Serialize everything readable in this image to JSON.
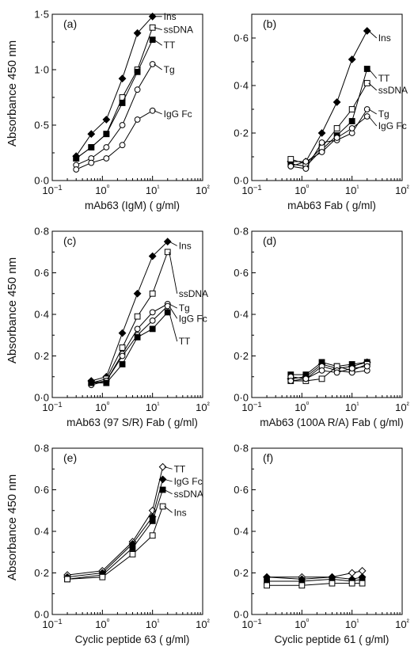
{
  "figure": {
    "ylabel_top": "Absorbance 450 nm",
    "ylabel_middle": "Absorbance 450 nm",
    "ylabel_bottom": "Absorbance 450 nm"
  },
  "chart_data": [
    {
      "type": "line",
      "panel": "(a)",
      "xlabel": "mAb63 (IgM) ( g/ml)",
      "ylabel": "Absorbance 450 nm",
      "xscale": "log",
      "xlim": [
        0.1,
        100
      ],
      "ylim": [
        0,
        1.5
      ],
      "xticks": [
        0.1,
        1,
        10,
        100
      ],
      "xtick_labels": [
        "10−1",
        "10⁰",
        "10¹",
        "10²"
      ],
      "yticks": [
        0,
        0.5,
        1.0,
        1.5
      ],
      "ytick_labels": [
        "0·0",
        "0·5",
        "1·0",
        "1·5"
      ],
      "series": [
        {
          "name": "Ins",
          "marker": "filled-diamond",
          "x": [
            0.3,
            0.6,
            1.2,
            2.5,
            5,
            10
          ],
          "y": [
            0.22,
            0.42,
            0.55,
            0.92,
            1.33,
            1.48
          ]
        },
        {
          "name": "ssDNA",
          "marker": "open-square",
          "x": [
            0.3,
            0.6,
            1.2,
            2.5,
            5,
            10
          ],
          "y": [
            0.2,
            0.3,
            0.42,
            0.75,
            1.0,
            1.38
          ]
        },
        {
          "name": "TT",
          "marker": "filled-square",
          "x": [
            0.3,
            0.6,
            1.2,
            2.5,
            5,
            10
          ],
          "y": [
            0.2,
            0.3,
            0.42,
            0.7,
            0.98,
            1.27
          ]
        },
        {
          "name": "Tg",
          "marker": "open-circle",
          "x": [
            0.3,
            0.6,
            1.2,
            2.5,
            5,
            10
          ],
          "y": [
            0.14,
            0.2,
            0.3,
            0.5,
            0.82,
            1.05
          ]
        },
        {
          "name": "IgG Fc",
          "marker": "open-circle",
          "x": [
            0.3,
            0.6,
            1.2,
            2.5,
            5,
            10
          ],
          "y": [
            0.1,
            0.16,
            0.2,
            0.32,
            0.55,
            0.63
          ]
        }
      ],
      "label_targets": [
        {
          "series": "Ins",
          "y": 1.48
        },
        {
          "series": "ssDNA",
          "y": 1.36
        },
        {
          "series": "TT",
          "y": 1.22
        },
        {
          "series": "Tg",
          "y": 1.0
        },
        {
          "series": "IgG Fc",
          "y": 0.6
        }
      ]
    },
    {
      "type": "line",
      "panel": "(b)",
      "xlabel": "mAb63 Fab ( g/ml)",
      "ylabel": "",
      "xscale": "log",
      "xlim": [
        0.1,
        100
      ],
      "ylim": [
        0,
        0.7
      ],
      "xticks": [
        0.1,
        1,
        10,
        100
      ],
      "xtick_labels": [
        "10−1",
        "10⁰",
        "10¹",
        "10²"
      ],
      "yticks": [
        0,
        0.2,
        0.4,
        0.6
      ],
      "ytick_labels": [
        "0·0",
        "0·2",
        "0·4",
        "0·6"
      ],
      "series": [
        {
          "name": "Ins",
          "marker": "filled-diamond",
          "x": [
            0.6,
            1.2,
            2.5,
            5,
            10,
            20
          ],
          "y": [
            0.08,
            0.08,
            0.2,
            0.33,
            0.51,
            0.63
          ]
        },
        {
          "name": "TT",
          "marker": "filled-square",
          "x": [
            0.6,
            1.2,
            2.5,
            5,
            10,
            20
          ],
          "y": [
            0.07,
            0.06,
            0.13,
            0.19,
            0.25,
            0.47
          ]
        },
        {
          "name": "ssDNA",
          "marker": "open-square",
          "x": [
            0.6,
            1.2,
            2.5,
            5,
            10,
            20
          ],
          "y": [
            0.09,
            0.07,
            0.14,
            0.22,
            0.3,
            0.41
          ]
        },
        {
          "name": "Tg",
          "marker": "open-circle",
          "x": [
            0.6,
            1.2,
            2.5,
            5,
            10,
            20
          ],
          "y": [
            0.06,
            0.05,
            0.16,
            0.17,
            0.2,
            0.3
          ]
        },
        {
          "name": "IgG Fc",
          "marker": "open-circle",
          "x": [
            0.6,
            1.2,
            2.5,
            5,
            10,
            20
          ],
          "y": [
            0.06,
            0.08,
            0.12,
            0.18,
            0.22,
            0.27
          ]
        }
      ],
      "label_targets": [
        {
          "series": "Ins",
          "y": 0.6
        },
        {
          "series": "TT",
          "y": 0.43
        },
        {
          "series": "ssDNA",
          "y": 0.38
        },
        {
          "series": "Tg",
          "y": 0.28
        },
        {
          "series": "IgG Fc",
          "y": 0.23
        }
      ]
    },
    {
      "type": "line",
      "panel": "(c)",
      "xlabel": "mAb63 (97 S/R) Fab ( g/ml)",
      "ylabel": "Absorbance 450 nm",
      "xscale": "log",
      "xlim": [
        0.1,
        100
      ],
      "ylim": [
        0,
        0.8
      ],
      "xticks": [
        0.1,
        1,
        10,
        100
      ],
      "xtick_labels": [
        "10−1",
        "10⁰",
        "10¹",
        "10²"
      ],
      "yticks": [
        0,
        0.2,
        0.4,
        0.6,
        0.8
      ],
      "ytick_labels": [
        "0·0",
        "0·2",
        "0·4",
        "0·6",
        "0·8"
      ],
      "series": [
        {
          "name": "Ins",
          "marker": "filled-diamond",
          "x": [
            0.6,
            1.2,
            2.5,
            5,
            10,
            20
          ],
          "y": [
            0.08,
            0.1,
            0.31,
            0.5,
            0.68,
            0.75
          ]
        },
        {
          "name": "ssDNA",
          "marker": "open-square",
          "x": [
            0.6,
            1.2,
            2.5,
            5,
            10,
            20
          ],
          "y": [
            0.07,
            0.09,
            0.24,
            0.39,
            0.5,
            0.7
          ]
        },
        {
          "name": "Tg",
          "marker": "open-circle",
          "x": [
            0.6,
            1.2,
            2.5,
            5,
            10,
            20
          ],
          "y": [
            0.07,
            0.08,
            0.21,
            0.33,
            0.41,
            0.45
          ]
        },
        {
          "name": "IgG Fc",
          "marker": "open-circle",
          "x": [
            0.6,
            1.2,
            2.5,
            5,
            10,
            20
          ],
          "y": [
            0.06,
            0.08,
            0.2,
            0.3,
            0.37,
            0.44
          ]
        },
        {
          "name": "TT",
          "marker": "filled-square",
          "x": [
            0.6,
            1.2,
            2.5,
            5,
            10,
            20
          ],
          "y": [
            0.07,
            0.07,
            0.16,
            0.29,
            0.33,
            0.41
          ]
        }
      ],
      "label_targets": [
        {
          "series": "Ins",
          "y": 0.73
        },
        {
          "series": "ssDNA",
          "y": 0.5
        },
        {
          "series": "Tg",
          "y": 0.43
        },
        {
          "series": "IgG Fc",
          "y": 0.38
        },
        {
          "series": "TT",
          "y": 0.27
        }
      ]
    },
    {
      "type": "line",
      "panel": "(d)",
      "xlabel": "mAb63 (100A R/A) Fab ( g/ml)",
      "ylabel": "",
      "xscale": "log",
      "xlim": [
        0.1,
        100
      ],
      "ylim": [
        0,
        0.8
      ],
      "xticks": [
        0.1,
        1,
        10,
        100
      ],
      "xtick_labels": [
        "10−1",
        "10⁰",
        "10¹",
        "10²"
      ],
      "yticks": [
        0,
        0.2,
        0.4,
        0.6,
        0.8
      ],
      "ytick_labels": [
        "0·0",
        "0·2",
        "0·4",
        "0·6",
        "0·8"
      ],
      "series": [
        {
          "name": "",
          "marker": "filled-square",
          "x": [
            0.6,
            1.2,
            2.5,
            5,
            10,
            20
          ],
          "y": [
            0.11,
            0.11,
            0.17,
            0.15,
            0.16,
            0.17
          ]
        },
        {
          "name": "",
          "marker": "filled-diamond",
          "x": [
            0.6,
            1.2,
            2.5,
            5,
            10,
            20
          ],
          "y": [
            0.09,
            0.1,
            0.16,
            0.14,
            0.15,
            0.17
          ]
        },
        {
          "name": "",
          "marker": "open-square",
          "x": [
            0.6,
            1.2,
            2.5,
            5,
            10,
            20
          ],
          "y": [
            0.08,
            0.08,
            0.09,
            0.15,
            0.13,
            0.16
          ]
        },
        {
          "name": "",
          "marker": "open-circle",
          "x": [
            0.6,
            1.2,
            2.5,
            5,
            10,
            20
          ],
          "y": [
            0.1,
            0.09,
            0.15,
            0.13,
            0.12,
            0.13
          ]
        },
        {
          "name": "",
          "marker": "open-circle",
          "x": [
            0.6,
            1.2,
            2.5,
            5,
            10,
            20
          ],
          "y": [
            0.08,
            0.09,
            0.13,
            0.12,
            0.14,
            0.15
          ]
        }
      ],
      "label_targets": []
    },
    {
      "type": "line",
      "panel": "(e)",
      "xlabel": "Cyclic peptide 63 ( g/ml)",
      "ylabel": "Absorbance 450 nm",
      "xscale": "log",
      "xlim": [
        0.1,
        100
      ],
      "ylim": [
        0,
        0.8
      ],
      "xticks": [
        0.1,
        1,
        10,
        100
      ],
      "xtick_labels": [
        "10−1",
        "10⁰",
        "10¹",
        "10²"
      ],
      "yticks": [
        0,
        0.2,
        0.4,
        0.6,
        0.8
      ],
      "ytick_labels": [
        "0·0",
        "0·2",
        "0·4",
        "0·6",
        "0·8"
      ],
      "series": [
        {
          "name": "TT",
          "marker": "open-diamond",
          "x": [
            0.2,
            1,
            4,
            10,
            16
          ],
          "y": [
            0.19,
            0.21,
            0.35,
            0.5,
            0.71
          ]
        },
        {
          "name": "IgG Fc",
          "marker": "filled-diamond",
          "x": [
            0.2,
            1,
            4,
            10,
            16
          ],
          "y": [
            0.18,
            0.2,
            0.34,
            0.47,
            0.65
          ]
        },
        {
          "name": "ssDNA",
          "marker": "filled-square",
          "x": [
            0.2,
            1,
            4,
            10,
            16
          ],
          "y": [
            0.17,
            0.19,
            0.32,
            0.45,
            0.6
          ]
        },
        {
          "name": "Ins",
          "marker": "open-square",
          "x": [
            0.2,
            1,
            4,
            10,
            16
          ],
          "y": [
            0.17,
            0.18,
            0.29,
            0.38,
            0.52
          ]
        }
      ],
      "label_targets": [
        {
          "series": "TT",
          "y": 0.7
        },
        {
          "series": "IgG Fc",
          "y": 0.64
        },
        {
          "series": "ssDNA",
          "y": 0.58
        },
        {
          "series": "Ins",
          "y": 0.49
        }
      ]
    },
    {
      "type": "line",
      "panel": "(f)",
      "xlabel": "Cyclic peptide 61 ( g/ml)",
      "ylabel": "",
      "xscale": "log",
      "xlim": [
        0.1,
        100
      ],
      "ylim": [
        0,
        0.8
      ],
      "xticks": [
        0.1,
        1,
        10,
        100
      ],
      "xtick_labels": [
        "10−1",
        "10⁰",
        "10¹",
        "10²"
      ],
      "yticks": [
        0,
        0.2,
        0.4,
        0.6,
        0.8
      ],
      "ytick_labels": [
        "0·0",
        "0·2",
        "0·4",
        "0·6",
        "0·8"
      ],
      "series": [
        {
          "name": "",
          "marker": "open-diamond",
          "x": [
            0.2,
            1,
            4,
            10,
            16
          ],
          "y": [
            0.18,
            0.18,
            0.18,
            0.2,
            0.21
          ]
        },
        {
          "name": "",
          "marker": "filled-diamond",
          "x": [
            0.2,
            1,
            4,
            10,
            16
          ],
          "y": [
            0.18,
            0.17,
            0.18,
            0.17,
            0.18
          ]
        },
        {
          "name": "",
          "marker": "filled-square",
          "x": [
            0.2,
            1,
            4,
            10,
            16
          ],
          "y": [
            0.16,
            0.16,
            0.17,
            0.16,
            0.17
          ]
        },
        {
          "name": "",
          "marker": "open-square",
          "x": [
            0.2,
            1,
            4,
            10,
            16
          ],
          "y": [
            0.14,
            0.14,
            0.15,
            0.15,
            0.15
          ]
        }
      ],
      "label_targets": []
    }
  ]
}
